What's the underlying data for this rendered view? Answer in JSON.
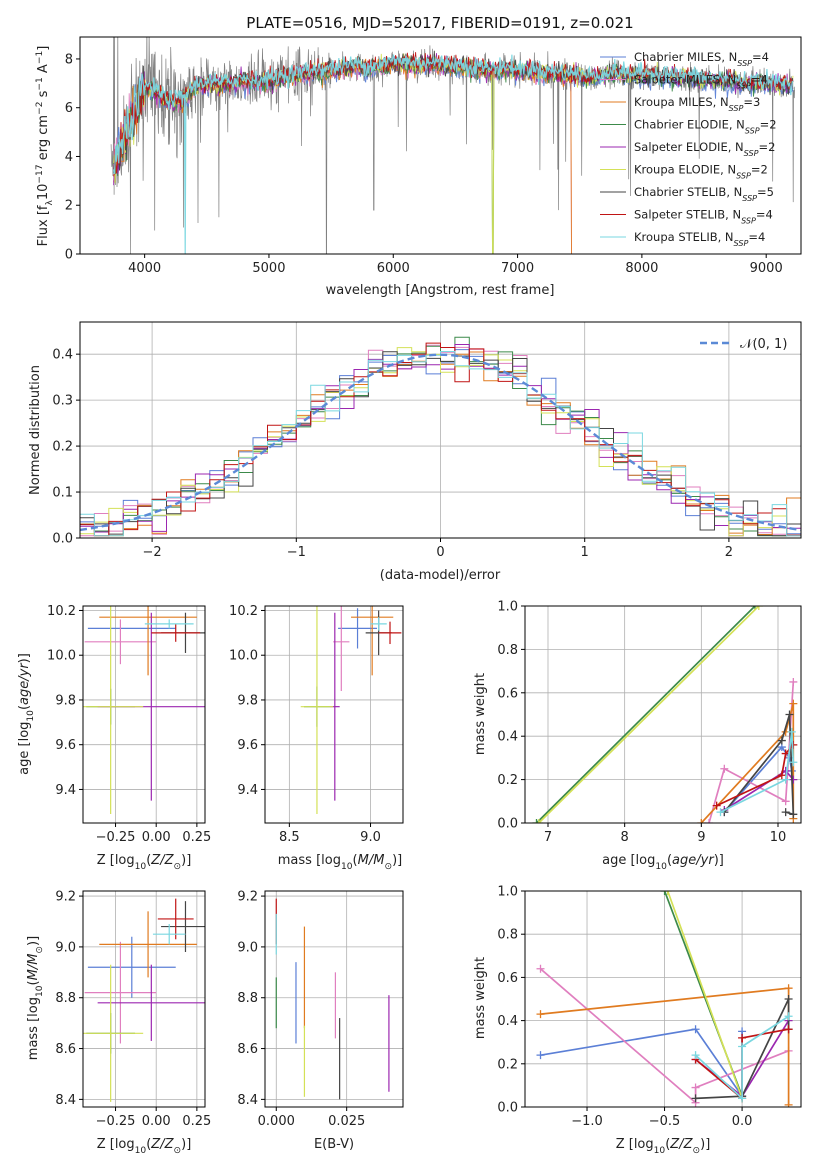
{
  "chart_data": [
    {
      "type": "line",
      "title": "PLATE=0516, MJD=52017, FIBERID=0191, z=0.021",
      "xlabel": "wavelength [Angstrom, rest frame]",
      "ylabel": "Flux [f_λ 10^-17 erg cm^-2 s^-1 A^-1]",
      "xlim": [
        3480,
        9280
      ],
      "ylim": [
        0,
        8.9
      ],
      "xticks": [
        "4000",
        "5000",
        "6000",
        "7000",
        "8000",
        "9000"
      ],
      "yticks": [
        "0",
        "2",
        "4",
        "6",
        "8"
      ],
      "grid": false,
      "legend_position": "top-right",
      "series": [
        {
          "name": "Chabrier MILES, N_SSP=4",
          "color": "#5b7fd6"
        },
        {
          "name": "Salpeter MILES, N_SSP=4",
          "color": "#e07fbf"
        },
        {
          "name": "Kroupa MILES, N_SSP=3",
          "color": "#e07b20"
        },
        {
          "name": "Chabrier ELODIE, N_SSP=2",
          "color": "#3c8a4a"
        },
        {
          "name": "Salpeter ELODIE, N_SSP=2",
          "color": "#9b27b0"
        },
        {
          "name": "Kroupa ELODIE, N_SSP=2",
          "color": "#d4e157"
        },
        {
          "name": "Chabrier STELIB, N_SSP=5",
          "color": "#444444"
        },
        {
          "name": "Salpeter STELIB, N_SSP=4",
          "color": "#c01414"
        },
        {
          "name": "Kroupa STELIB, N_SSP=4",
          "color": "#7ad7e0"
        }
      ],
      "data_series": {
        "name": "",
        "color": "#808080"
      },
      "x": [
        3750,
        3800,
        3850,
        3900,
        3950,
        4000,
        4100,
        4200,
        4300,
        4400,
        4500,
        4600,
        4700,
        4800,
        4900,
        5000,
        5100,
        5200,
        5300,
        5400,
        5500,
        5600,
        5700,
        5800,
        5900,
        6000,
        6100,
        6200,
        6300,
        6400,
        6500,
        6600,
        6700,
        6800,
        6900,
        7000,
        7100,
        7200,
        7300,
        7400,
        7500,
        7600,
        7700,
        7800,
        7900,
        8000,
        8100,
        8200,
        8300,
        8400,
        8500,
        8600,
        8700,
        8800,
        8900,
        9000,
        9100,
        9200
      ],
      "model": [
        3.6,
        4.2,
        4.8,
        5.6,
        6.2,
        6.8,
        6.6,
        6.2,
        6.3,
        6.8,
        7.0,
        6.9,
        7.0,
        7.1,
        7.0,
        7.1,
        7.2,
        7.3,
        7.4,
        7.5,
        7.5,
        7.6,
        7.7,
        7.6,
        7.7,
        7.8,
        7.8,
        7.7,
        7.8,
        7.7,
        7.7,
        7.6,
        7.6,
        7.5,
        7.6,
        7.5,
        7.5,
        7.4,
        7.4,
        7.3,
        7.3,
        7.2,
        7.3,
        7.4,
        7.3,
        7.3,
        7.3,
        7.3,
        7.2,
        7.2,
        7.1,
        7.1,
        7.1,
        7.0,
        7.0,
        7.0,
        6.9,
        6.9
      ]
    },
    {
      "type": "histogram",
      "xlabel": "(data-model)/error",
      "ylabel": "Normed distribution",
      "xlim": [
        -2.5,
        2.5
      ],
      "ylim": [
        0,
        0.47
      ],
      "xticks": [
        "−2",
        "−1",
        "0",
        "1",
        "2"
      ],
      "yticks": [
        "0.0",
        "0.1",
        "0.2",
        "0.3",
        "0.4"
      ],
      "grid": true,
      "legend_position": "top-right",
      "legend": "N(0,1)",
      "bin_width": 0.1
    },
    {
      "type": "scatter",
      "xlabel": "Z [log10(Z/Z⊙)]",
      "ylabel": "age  [log10(age/yr)]",
      "xlim": [
        -0.45,
        0.3
      ],
      "ylim": [
        9.25,
        10.22
      ],
      "xticks": [
        "−0.25",
        "0.00",
        "0.25"
      ],
      "yticks": [
        "9.4",
        "9.6",
        "9.8",
        "10.0",
        "10.2"
      ],
      "grid": true
    },
    {
      "type": "scatter",
      "xlabel": "mass [log10(M/M⊙)]",
      "xlim": [
        8.35,
        9.2
      ],
      "ylim": [
        9.25,
        10.22
      ],
      "xticks": [
        "8.5",
        "9.0"
      ],
      "yticks": [
        "9.4",
        "9.6",
        "9.8",
        "10.0",
        "10.2"
      ],
      "grid": true
    },
    {
      "type": "line",
      "xlabel": "age  [log10(age/yr)]",
      "ylabel": "mass weight",
      "xlim": [
        6.7,
        10.3
      ],
      "ylim": [
        0,
        1.0
      ],
      "xticks": [
        "7",
        "8",
        "9",
        "10"
      ],
      "yticks": [
        "0.0",
        "0.2",
        "0.4",
        "0.6",
        "0.8",
        "1.0"
      ],
      "grid": true
    },
    {
      "type": "scatter",
      "xlabel": "Z [log10(Z/Z⊙)]",
      "ylabel": "mass [log10(M/M⊙)]",
      "xlim": [
        -0.45,
        0.3
      ],
      "ylim": [
        8.37,
        9.22
      ],
      "xticks": [
        "−0.25",
        "0.00",
        "0.25"
      ],
      "yticks": [
        "8.4",
        "8.6",
        "8.8",
        "9.0",
        "9.2"
      ],
      "grid": true
    },
    {
      "type": "scatter",
      "xlabel": "E(B-V)",
      "xlim": [
        -0.004,
        0.045
      ],
      "ylim": [
        8.37,
        9.22
      ],
      "xticks": [
        "0.000",
        "0.025"
      ],
      "yticks": [
        "8.4",
        "8.6",
        "8.8",
        "9.0",
        "9.2"
      ],
      "grid": true
    },
    {
      "type": "line",
      "xlabel": "Z [log10(Z/Z⊙)]",
      "ylabel": "mass weight",
      "xlim": [
        -1.4,
        0.38
      ],
      "ylim": [
        0,
        1.0
      ],
      "xticks": [
        "−1.0",
        "−0.5",
        "0.0"
      ],
      "yticks": [
        "0.0",
        "0.2",
        "0.4",
        "0.6",
        "0.8",
        "1.0"
      ],
      "grid": true
    }
  ]
}
